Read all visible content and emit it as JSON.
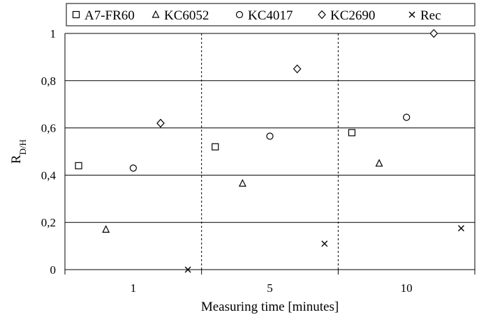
{
  "chart_data": {
    "type": "scatter",
    "xlabel": "Measuring time [minutes]",
    "ylabel": "R",
    "ylabel_sub": "D/H",
    "ylim": [
      0,
      1
    ],
    "yticks": [
      "0",
      "0,2",
      "0,4",
      "0,6",
      "0,8",
      "1"
    ],
    "ytick_values": [
      0,
      0.2,
      0.4,
      0.6,
      0.8,
      1.0
    ],
    "categories": [
      "1",
      "5",
      "10"
    ],
    "grid": true,
    "legend_position": "top",
    "series": [
      {
        "name": "A7-FR60",
        "marker": "square",
        "values": [
          0.44,
          0.52,
          0.58
        ]
      },
      {
        "name": "KC6052",
        "marker": "triangle",
        "values": [
          0.17,
          0.365,
          0.45
        ]
      },
      {
        "name": "KC4017",
        "marker": "circle",
        "values": [
          0.43,
          0.565,
          0.645
        ]
      },
      {
        "name": "KC2690",
        "marker": "diamond",
        "values": [
          0.62,
          0.85,
          1.0
        ]
      },
      {
        "name": "Rec",
        "marker": "cross",
        "values": [
          0.0,
          0.11,
          0.175
        ]
      }
    ]
  }
}
